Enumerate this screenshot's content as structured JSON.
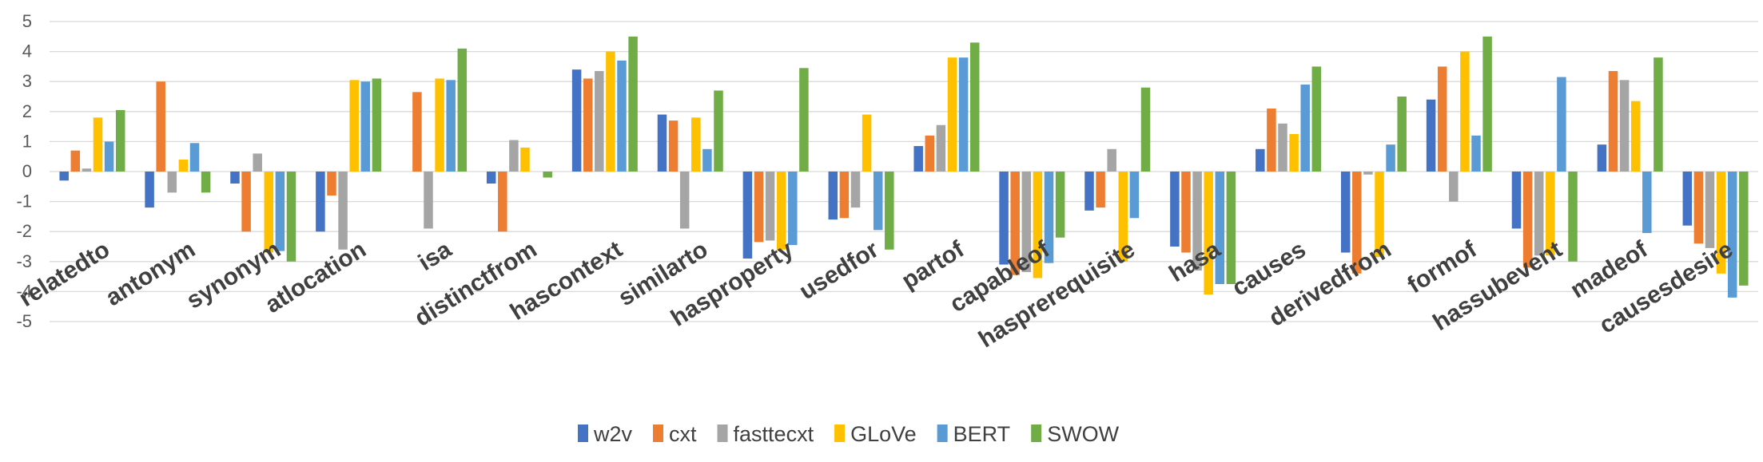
{
  "chart_data": {
    "type": "bar",
    "title": "",
    "xlabel": "",
    "ylabel": "",
    "ylim": [
      -5,
      5
    ],
    "yticks": [
      5,
      4,
      3,
      2,
      1,
      0,
      -1,
      -2,
      -3,
      -4,
      -5
    ],
    "grid": true,
    "legend_position": "bottom",
    "categories": [
      "relatedto",
      "antonym",
      "synonym",
      "atlocation",
      "isa",
      "distinctfrom",
      "hascontext",
      "similarto",
      "hasproperty",
      "usedfor",
      "partof",
      "capableof",
      "hasprerequisite",
      "hasa",
      "causes",
      "derivedfrom",
      "formof",
      "hassubevent",
      "madeof",
      "causesdesire"
    ],
    "series": [
      {
        "name": "w2v",
        "color": "#4472c4",
        "values": [
          -0.3,
          -1.2,
          -0.4,
          -2.0,
          0.0,
          -0.4,
          3.4,
          1.9,
          -2.9,
          -1.6,
          0.85,
          -3.1,
          -1.3,
          -2.5,
          0.75,
          -2.7,
          2.4,
          -1.9,
          0.9,
          -1.8
        ]
      },
      {
        "name": "cxt",
        "color": "#ed7d31",
        "values": [
          0.7,
          3.0,
          -2.0,
          -0.8,
          2.65,
          -2.0,
          3.1,
          1.7,
          -2.35,
          -1.55,
          1.2,
          -3.45,
          -1.2,
          -2.7,
          2.1,
          -3.4,
          3.5,
          -3.2,
          3.35,
          -2.4
        ]
      },
      {
        "name": "fasttecxt",
        "color": "#a5a5a5",
        "values": [
          0.1,
          -0.7,
          0.6,
          -2.6,
          -1.9,
          1.05,
          3.35,
          -1.9,
          -2.3,
          -1.2,
          1.55,
          -3.35,
          0.75,
          -3.3,
          1.6,
          -0.1,
          -1.0,
          -2.8,
          3.05,
          -2.55
        ]
      },
      {
        "name": "GLoVe",
        "color": "#ffc000",
        "values": [
          1.8,
          0.4,
          -2.7,
          3.05,
          3.1,
          0.8,
          4.0,
          1.8,
          -2.6,
          1.9,
          3.8,
          -3.55,
          -3.0,
          -4.1,
          1.25,
          -2.85,
          4.0,
          -2.8,
          2.35,
          -3.4
        ]
      },
      {
        "name": "BERT",
        "color": "#5b9bd5",
        "values": [
          1.0,
          0.95,
          -2.65,
          3.0,
          3.05,
          0.0,
          3.7,
          0.75,
          -2.45,
          -1.95,
          3.8,
          -3.05,
          -1.55,
          -3.75,
          2.9,
          0.9,
          1.2,
          3.15,
          -2.05,
          -4.2
        ]
      },
      {
        "name": "SWOW",
        "color": "#70ad47",
        "values": [
          2.05,
          -0.7,
          -3.0,
          3.1,
          4.1,
          -0.2,
          4.5,
          2.7,
          3.45,
          -2.6,
          4.3,
          -2.2,
          2.8,
          -3.75,
          3.5,
          2.5,
          4.5,
          -3.0,
          3.8,
          -3.8
        ]
      }
    ]
  }
}
